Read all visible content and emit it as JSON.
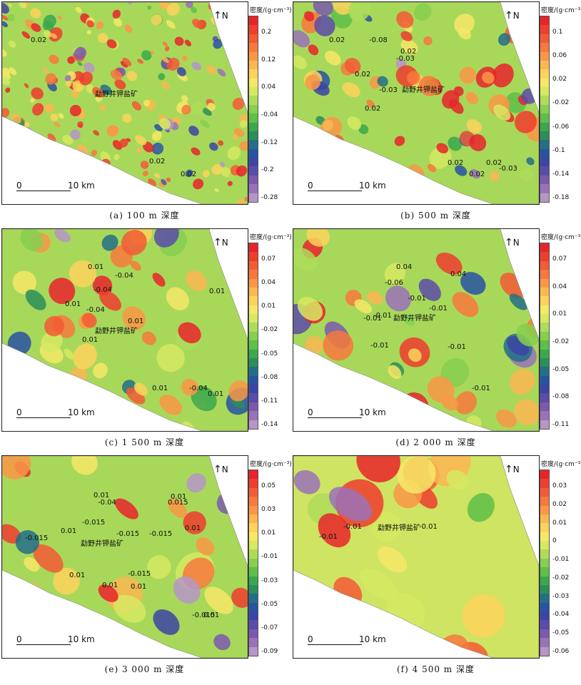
{
  "unit_title": "密度/(g·cm⁻³)",
  "north": "N",
  "scale_zero": "0",
  "scale_len": "10 km",
  "mine_name": "勐野井钾盐矿",
  "palette": [
    "#e8242b",
    "#ef3d2e",
    "#f35b35",
    "#f7793d",
    "#fa9747",
    "#fcb652",
    "#fdd35c",
    "#f6e867",
    "#d6e963",
    "#aedc5a",
    "#86cf50",
    "#5ebf49",
    "#3aa84c",
    "#2b8f59",
    "#236f87",
    "#2753a3",
    "#3b45a6",
    "#5a4ca9",
    "#7a5aae",
    "#9a72b8",
    "#b596c7"
  ],
  "panels": [
    {
      "caption": "(a) 100 m 深度",
      "ticks": [
        "0.2",
        "0.12",
        "0.04",
        "-0.04",
        "-0.12",
        "-0.2",
        "-0.28"
      ],
      "labels": [
        {
          "text": "0.02"
        },
        {
          "text": "0.02"
        },
        {
          "text": "0.02"
        }
      ]
    },
    {
      "caption": "(b) 500 m 深度",
      "ticks": [
        "0.1",
        "0.06",
        "0.02",
        "-0.02",
        "-0.06",
        "-0.1",
        "-0.14",
        "-0.18"
      ],
      "labels": [
        {
          "text": "0.02"
        },
        {
          "text": "-0.08"
        },
        {
          "text": "0.02"
        },
        {
          "text": "-0.03"
        },
        {
          "text": "0.02"
        },
        {
          "text": "-0.03"
        },
        {
          "text": "0.02"
        },
        {
          "text": "0.02"
        },
        {
          "text": "0.02"
        },
        {
          "text": "-0.03"
        },
        {
          "text": "0.02"
        }
      ]
    },
    {
      "caption": "(c) 1 500 m 深度",
      "ticks": [
        "0.07",
        "0.04",
        "0.01",
        "-0.02",
        "-0.05",
        "-0.08",
        "-0.11",
        "-0.14"
      ],
      "labels": [
        {
          "text": "0.01"
        },
        {
          "text": "-0.04"
        },
        {
          "text": "-0.04"
        },
        {
          "text": "0.01"
        },
        {
          "text": "0.01"
        },
        {
          "text": "-0.04"
        },
        {
          "text": "0.01"
        },
        {
          "text": "0.01"
        },
        {
          "text": "0.01"
        },
        {
          "text": "-0.04"
        },
        {
          "text": "0.01"
        }
      ]
    },
    {
      "caption": "(d) 2 000 m 深度",
      "ticks": [
        "0.07",
        "0.04",
        "0.01",
        "-0.02",
        "-0.05",
        "-0.08",
        "-0.11"
      ],
      "labels": [
        {
          "text": "0.04"
        },
        {
          "text": "-0.06"
        },
        {
          "text": "0.04"
        },
        {
          "text": "-0.01"
        },
        {
          "text": "-0.01"
        },
        {
          "text": "-0.01"
        },
        {
          "text": "-0.01"
        },
        {
          "text": "-0.01"
        },
        {
          "text": "-0.01"
        },
        {
          "text": "-0.01"
        }
      ]
    },
    {
      "caption": "(e) 3 000 m 深度",
      "ticks": [
        "0.05",
        "0.03",
        "0.01",
        "-0.01",
        "-0.03",
        "-0.05",
        "-0.07",
        "-0.09"
      ],
      "labels": [
        {
          "text": "0.01"
        },
        {
          "text": "-0.04"
        },
        {
          "text": "-0.015"
        },
        {
          "text": "0.01"
        },
        {
          "text": "0.015"
        },
        {
          "text": "0.01"
        },
        {
          "text": "0.01"
        },
        {
          "text": "-0.015"
        },
        {
          "text": "-0.015"
        },
        {
          "text": "-0.015"
        },
        {
          "text": "0.01"
        },
        {
          "text": "0.01"
        },
        {
          "text": "0.01"
        },
        {
          "text": "-0.015"
        },
        {
          "text": "-0.015"
        },
        {
          "text": "0.01"
        }
      ]
    },
    {
      "caption": "(f) 4 500 m 深度",
      "ticks": [
        "0.03",
        "0.02",
        "0.01",
        "0",
        "-0.01",
        "-0.02",
        "-0.03",
        "-0.04",
        "-0.05",
        "-0.06"
      ],
      "labels": [
        {
          "text": "-0.01"
        },
        {
          "text": "-0.01"
        },
        {
          "text": "-0.01"
        }
      ]
    }
  ]
}
